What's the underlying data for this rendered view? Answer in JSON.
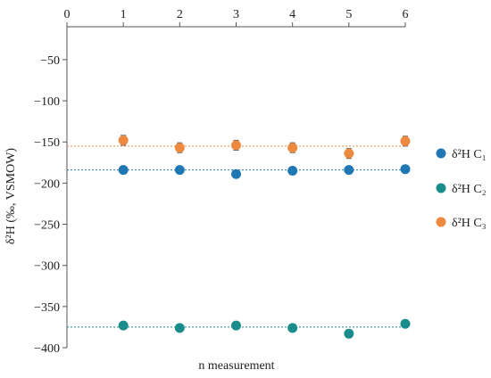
{
  "chart_data": {
    "type": "scatter",
    "title": "",
    "xlabel": "n measurement",
    "ylabel": "δ²H (‰, VSMOW)",
    "xlim": [
      0,
      6
    ],
    "ylim": [
      -400,
      -10
    ],
    "x_ticks": [
      "0",
      "1",
      "2",
      "3",
      "4",
      "5",
      "6"
    ],
    "y_ticks": [
      "−50",
      "−100",
      "−150",
      "−200",
      "−250",
      "−300",
      "−350",
      "−400"
    ],
    "x_axis_position": "top",
    "grid": false,
    "legend_position": "right",
    "x": [
      1,
      2,
      3,
      4,
      5,
      6
    ],
    "series": [
      {
        "name": "δ²H C₁",
        "color": "#1f77b4",
        "values": [
          -184,
          -184,
          -189,
          -185,
          -184,
          -183
        ],
        "error": [
          1.5,
          1.5,
          1.5,
          1.5,
          1.5,
          1.5
        ],
        "mean_line": -184
      },
      {
        "name": "δ²H C₂",
        "color": "#1a8c8c",
        "values": [
          -373,
          -376,
          -373,
          -376,
          -383,
          -371
        ],
        "error": [
          4,
          4,
          4,
          4,
          4,
          4
        ],
        "mean_line": -375
      },
      {
        "name": "δ²H C₃",
        "color": "#ed8a3f",
        "values": [
          -148,
          -157,
          -154,
          -157,
          -164,
          -149
        ],
        "error": [
          6,
          6,
          6,
          6,
          6,
          6
        ],
        "mean_line": -155
      }
    ]
  }
}
